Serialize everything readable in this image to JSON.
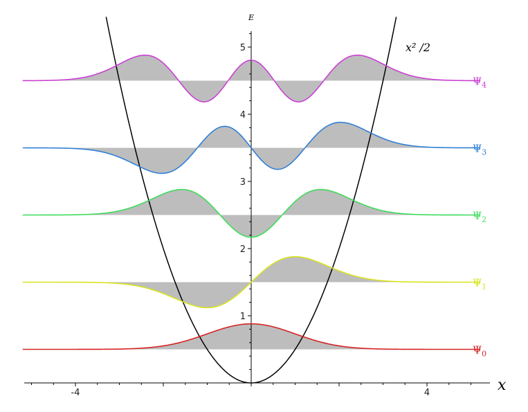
{
  "chart_data": {
    "type": "line",
    "title": "",
    "xlabel": "x",
    "ylabel": "E",
    "xlim": [
      -5.2,
      5.2
    ],
    "ylim": [
      0,
      5.45
    ],
    "x_ticks": [
      {
        "value": -4,
        "label": "-4"
      },
      {
        "value": -2,
        "label": ""
      },
      {
        "value": 0,
        "label": ""
      },
      {
        "value": 2,
        "label": ""
      },
      {
        "value": 4,
        "label": "4"
      }
    ],
    "y_ticks": [
      {
        "value": 1,
        "label": "1"
      },
      {
        "value": 2,
        "label": "2"
      },
      {
        "value": 3,
        "label": "3"
      },
      {
        "value": 4,
        "label": "4"
      },
      {
        "value": 5,
        "label": "5"
      }
    ],
    "grid": false,
    "potential": {
      "label": "x² /2",
      "color": "#000000"
    },
    "fill_color": "#bdbdbd",
    "amplitude": 0.38,
    "series": [
      {
        "name": "Ψ",
        "sub": "0",
        "n": 0,
        "level": 0.5,
        "color": "#d62222"
      },
      {
        "name": "Ψ",
        "sub": "1",
        "n": 1,
        "level": 1.5,
        "color": "#d8e41e"
      },
      {
        "name": "Ψ",
        "sub": "2",
        "n": 2,
        "level": 2.5,
        "color": "#3ddc5a"
      },
      {
        "name": "Ψ",
        "sub": "3",
        "n": 3,
        "level": 3.5,
        "color": "#2f7fd6"
      },
      {
        "name": "Ψ",
        "sub": "4",
        "n": 4,
        "level": 4.5,
        "color": "#c93fd4"
      }
    ]
  }
}
